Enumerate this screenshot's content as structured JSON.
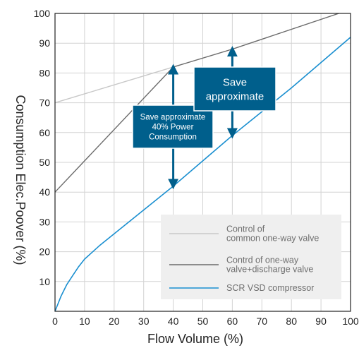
{
  "chart_data": {
    "type": "line",
    "xlabel": "Flow Volume (%)",
    "ylabel": "Consumption Elec.Poover  (%)",
    "xlim": [
      0,
      100
    ],
    "ylim": [
      0,
      100
    ],
    "xticks": [
      "0",
      "10",
      "20",
      "30",
      "40",
      "50",
      "60",
      "70",
      "80",
      "90",
      "100"
    ],
    "yticks": [
      "10",
      "20",
      "30",
      "40",
      "50",
      "60",
      "70",
      "80",
      "90",
      "100"
    ],
    "grid": true,
    "legend_position": "bottom-right",
    "series": [
      {
        "name": "Control of\ncommon one-way valve",
        "color": "#c8c8c8",
        "points": [
          [
            0,
            70
          ],
          [
            40,
            82
          ],
          [
            60,
            88
          ],
          [
            96,
            100
          ]
        ]
      },
      {
        "name": "Contrd of one-way\nvalve+discharge valve",
        "color": "#6b6b6b",
        "points": [
          [
            0,
            40
          ],
          [
            40,
            82
          ],
          [
            60,
            88
          ],
          [
            96,
            100
          ]
        ]
      },
      {
        "name": "SCR VSD compressor",
        "color": "#1a8fd0",
        "points": [
          [
            0,
            0
          ],
          [
            2,
            5
          ],
          [
            4,
            9
          ],
          [
            6,
            12
          ],
          [
            8,
            15
          ],
          [
            10,
            17.5
          ],
          [
            15,
            22
          ],
          [
            20,
            26
          ],
          [
            30,
            34
          ],
          [
            40,
            42
          ],
          [
            50,
            50.5
          ],
          [
            60,
            59
          ],
          [
            70,
            67
          ],
          [
            80,
            75
          ],
          [
            90,
            83.5
          ],
          [
            100,
            92
          ]
        ]
      }
    ],
    "annotations": [
      {
        "text": "Save approximate\n40% Power\nConsumption",
        "x": 40,
        "from": 42,
        "to": 82
      },
      {
        "text": "Save\napproximate",
        "x": 60,
        "from": 59,
        "to": 88
      }
    ]
  },
  "colors": {
    "callout_bg": "#005f8c",
    "callout_border": "#ffffff",
    "arrow": "#005f8c",
    "legend_bg": "#efefef",
    "grid": "#d3d3d3",
    "axis": "#222222"
  }
}
